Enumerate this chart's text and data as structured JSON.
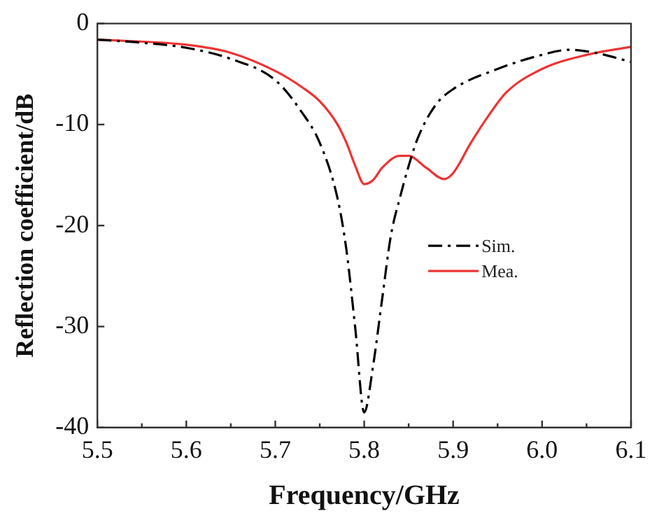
{
  "chart_data": {
    "type": "line",
    "xlabel": "Frequency/GHz",
    "ylabel": "Reflection coefficient/dB",
    "xlim": [
      5.5,
      6.1
    ],
    "xticks": [
      5.5,
      5.6,
      5.7,
      5.8,
      5.9,
      {
        "value": 6.0,
        "label": "6.0"
      },
      6.1
    ],
    "ylim": [
      -40,
      0
    ],
    "yticks": [
      -40,
      -30,
      -20,
      -10,
      0
    ],
    "grid": false,
    "legend": "right",
    "marker": "none",
    "series": [
      {
        "name": "Sim.",
        "color": "#000000",
        "line_style": "dashdot",
        "x": [
          5.5,
          5.55,
          5.6,
          5.65,
          5.7,
          5.73,
          5.75,
          5.77,
          5.78,
          5.79,
          5.8,
          5.81,
          5.82,
          5.83,
          5.84,
          5.85,
          5.86,
          5.88,
          5.9,
          5.95,
          6.0,
          6.03,
          6.06,
          6.1
        ],
        "values": [
          -1.6,
          -1.9,
          -2.4,
          -3.5,
          -5.6,
          -8.8,
          -11.8,
          -17.3,
          -22.4,
          -30.2,
          -38.5,
          -33.9,
          -27.4,
          -21,
          -17.3,
          -14.1,
          -11.4,
          -8.1,
          -6.5,
          -4.5,
          -3.1,
          -2.6,
          -2.9,
          -3.8
        ]
      },
      {
        "name": "Mea.",
        "color": "#ee3333",
        "line_style": "solid",
        "x": [
          5.5,
          5.6,
          5.65,
          5.7,
          5.73,
          5.75,
          5.77,
          5.78,
          5.79,
          5.8,
          5.81,
          5.82,
          5.84,
          5.85,
          5.87,
          5.89,
          5.9,
          5.92,
          5.94,
          5.96,
          6.0,
          6.05,
          6.1
        ],
        "values": [
          -1.6,
          -2.1,
          -2.9,
          -4.7,
          -6.3,
          -7.7,
          -10,
          -11.8,
          -14.1,
          -15.9,
          -15.5,
          -14.3,
          -13.1,
          -13.1,
          -14.3,
          -15.4,
          -14.8,
          -11.8,
          -9.1,
          -6.8,
          -4.5,
          -3.1,
          -2.3
        ]
      }
    ]
  }
}
